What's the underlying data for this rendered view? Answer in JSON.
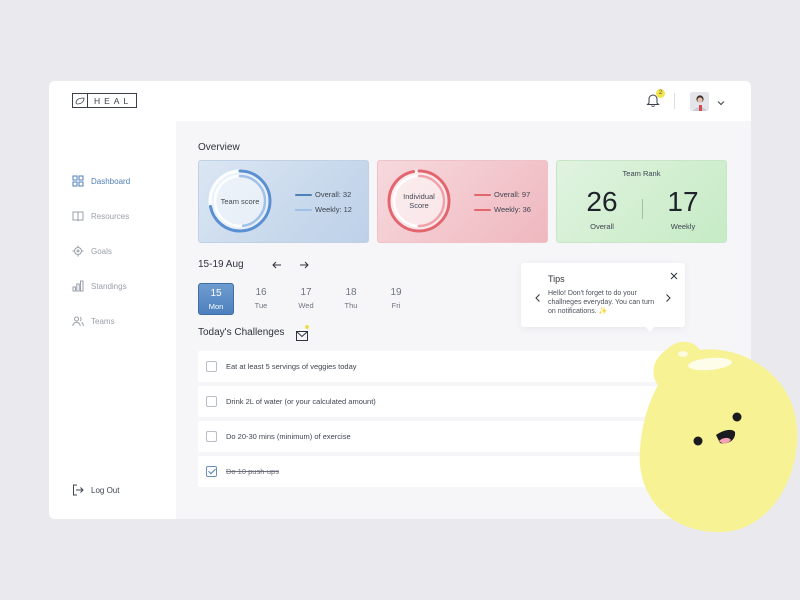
{
  "app": {
    "logo_text": "HEAL",
    "notification_count": "2"
  },
  "sidebar": {
    "items": [
      {
        "label": "Dashboard",
        "icon": "grid-icon"
      },
      {
        "label": "Resources",
        "icon": "book-icon"
      },
      {
        "label": "Goals",
        "icon": "target-icon"
      },
      {
        "label": "Standings",
        "icon": "bar-chart-icon"
      },
      {
        "label": "Teams",
        "icon": "users-icon"
      }
    ],
    "logout_label": "Log Out"
  },
  "overview": {
    "title": "Overview",
    "team": {
      "ring_label": "Team score",
      "overall": "Overall: 32",
      "weekly": "Weekly: 12",
      "overall_fraction": 0.72,
      "weekly_fraction": 0.48,
      "color": "#5a8fd1"
    },
    "individual": {
      "ring_label_1": "Individual",
      "ring_label_2": "Score",
      "overall": "Overall: 97",
      "weekly": "Weekly: 36",
      "overall_fraction": 0.97,
      "weekly_fraction": 0.5,
      "color": "#e3666f"
    },
    "rank": {
      "title": "Team Rank",
      "overall_value": "26",
      "overall_label": "Overall",
      "weekly_value": "17",
      "weekly_label": "Weekly"
    }
  },
  "week": {
    "range": "15-19 Aug",
    "days": [
      {
        "num": "15",
        "name": "Mon",
        "selected": true
      },
      {
        "num": "16",
        "name": "Tue",
        "selected": false
      },
      {
        "num": "17",
        "name": "Wed",
        "selected": false
      },
      {
        "num": "18",
        "name": "Thu",
        "selected": false
      },
      {
        "num": "19",
        "name": "Fri",
        "selected": false
      }
    ]
  },
  "challenges": {
    "title": "Today's Challenges",
    "items": [
      {
        "text": "Eat at least 5 servings of veggies today",
        "done": false
      },
      {
        "text": "Drink 2L of water (or your calculated amount)",
        "done": false
      },
      {
        "text": "Do 20-30 mins (minimum) of exercise",
        "done": false
      },
      {
        "text": "Do 10 push-ups",
        "done": true
      }
    ]
  },
  "tips": {
    "title": "Tips",
    "body": "Hello! Don't forget to do your challneges everyday. You can turn on notifications. ✨"
  },
  "colors": {
    "accent": "#4f7fb8",
    "mascot": "#f7f294",
    "badge": "#f3e44b"
  }
}
